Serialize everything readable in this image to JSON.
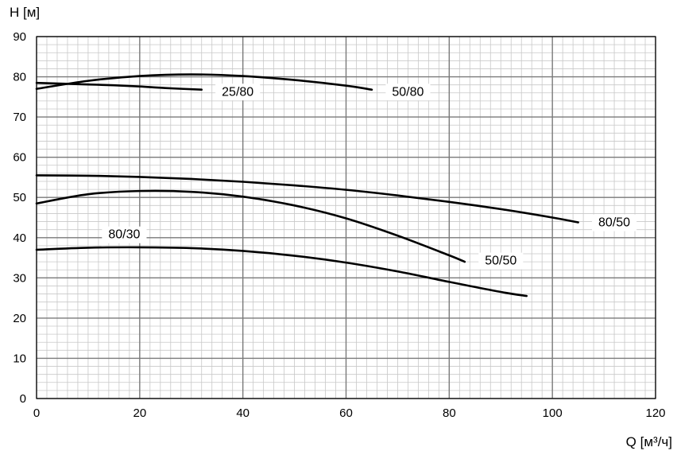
{
  "chart_data": {
    "type": "line",
    "xlabel": "Q [м³/ч]",
    "ylabel": "H [м]",
    "xlim": [
      0,
      120
    ],
    "ylim": [
      0,
      90
    ],
    "xticks": [
      0,
      20,
      40,
      60,
      80,
      100,
      120
    ],
    "yticks": [
      0,
      10,
      20,
      30,
      40,
      50,
      60,
      70,
      80,
      90
    ],
    "grid": true,
    "minor_grid": {
      "x_step": 2,
      "y_step": 2
    },
    "legend": "inline labels",
    "line_color": "#000000",
    "series": [
      {
        "name": "25/80",
        "x": [
          0,
          5,
          10,
          15,
          20,
          25,
          32
        ],
        "y": [
          78.5,
          78.3,
          78.1,
          77.9,
          77.6,
          77.2,
          76.8
        ]
      },
      {
        "name": "50/80",
        "x": [
          0,
          10,
          20,
          30,
          40,
          50,
          60,
          65
        ],
        "y": [
          77,
          79,
          80.2,
          80.6,
          80.2,
          79.2,
          77.8,
          76.8
        ]
      },
      {
        "name": "80/50",
        "x": [
          0,
          10,
          20,
          30,
          40,
          50,
          60,
          70,
          80,
          90,
          100,
          105
        ],
        "y": [
          55.5,
          55.4,
          55.1,
          54.6,
          53.9,
          53.0,
          51.9,
          50.5,
          48.9,
          47.1,
          45.0,
          43.8
        ]
      },
      {
        "name": "50/50",
        "x": [
          0,
          10,
          20,
          30,
          40,
          50,
          60,
          70,
          80,
          83
        ],
        "y": [
          48.5,
          50.8,
          51.6,
          51.4,
          50.2,
          48.0,
          44.8,
          40.5,
          35.6,
          34.0
        ]
      },
      {
        "name": "80/30",
        "x": [
          0,
          10,
          20,
          30,
          40,
          50,
          60,
          70,
          80,
          90,
          95
        ],
        "y": [
          37,
          37.5,
          37.6,
          37.4,
          36.7,
          35.5,
          33.8,
          31.6,
          29.0,
          26.5,
          25.5
        ]
      }
    ],
    "labels": [
      {
        "series": "25/80",
        "x": 39,
        "y": 76.5
      },
      {
        "series": "50/80",
        "x": 72,
        "y": 76.5
      },
      {
        "series": "80/50",
        "x": 112,
        "y": 44
      },
      {
        "series": "50/50",
        "x": 90,
        "y": 34.5
      },
      {
        "series": "80/30",
        "x": 17,
        "y": 41
      }
    ]
  }
}
